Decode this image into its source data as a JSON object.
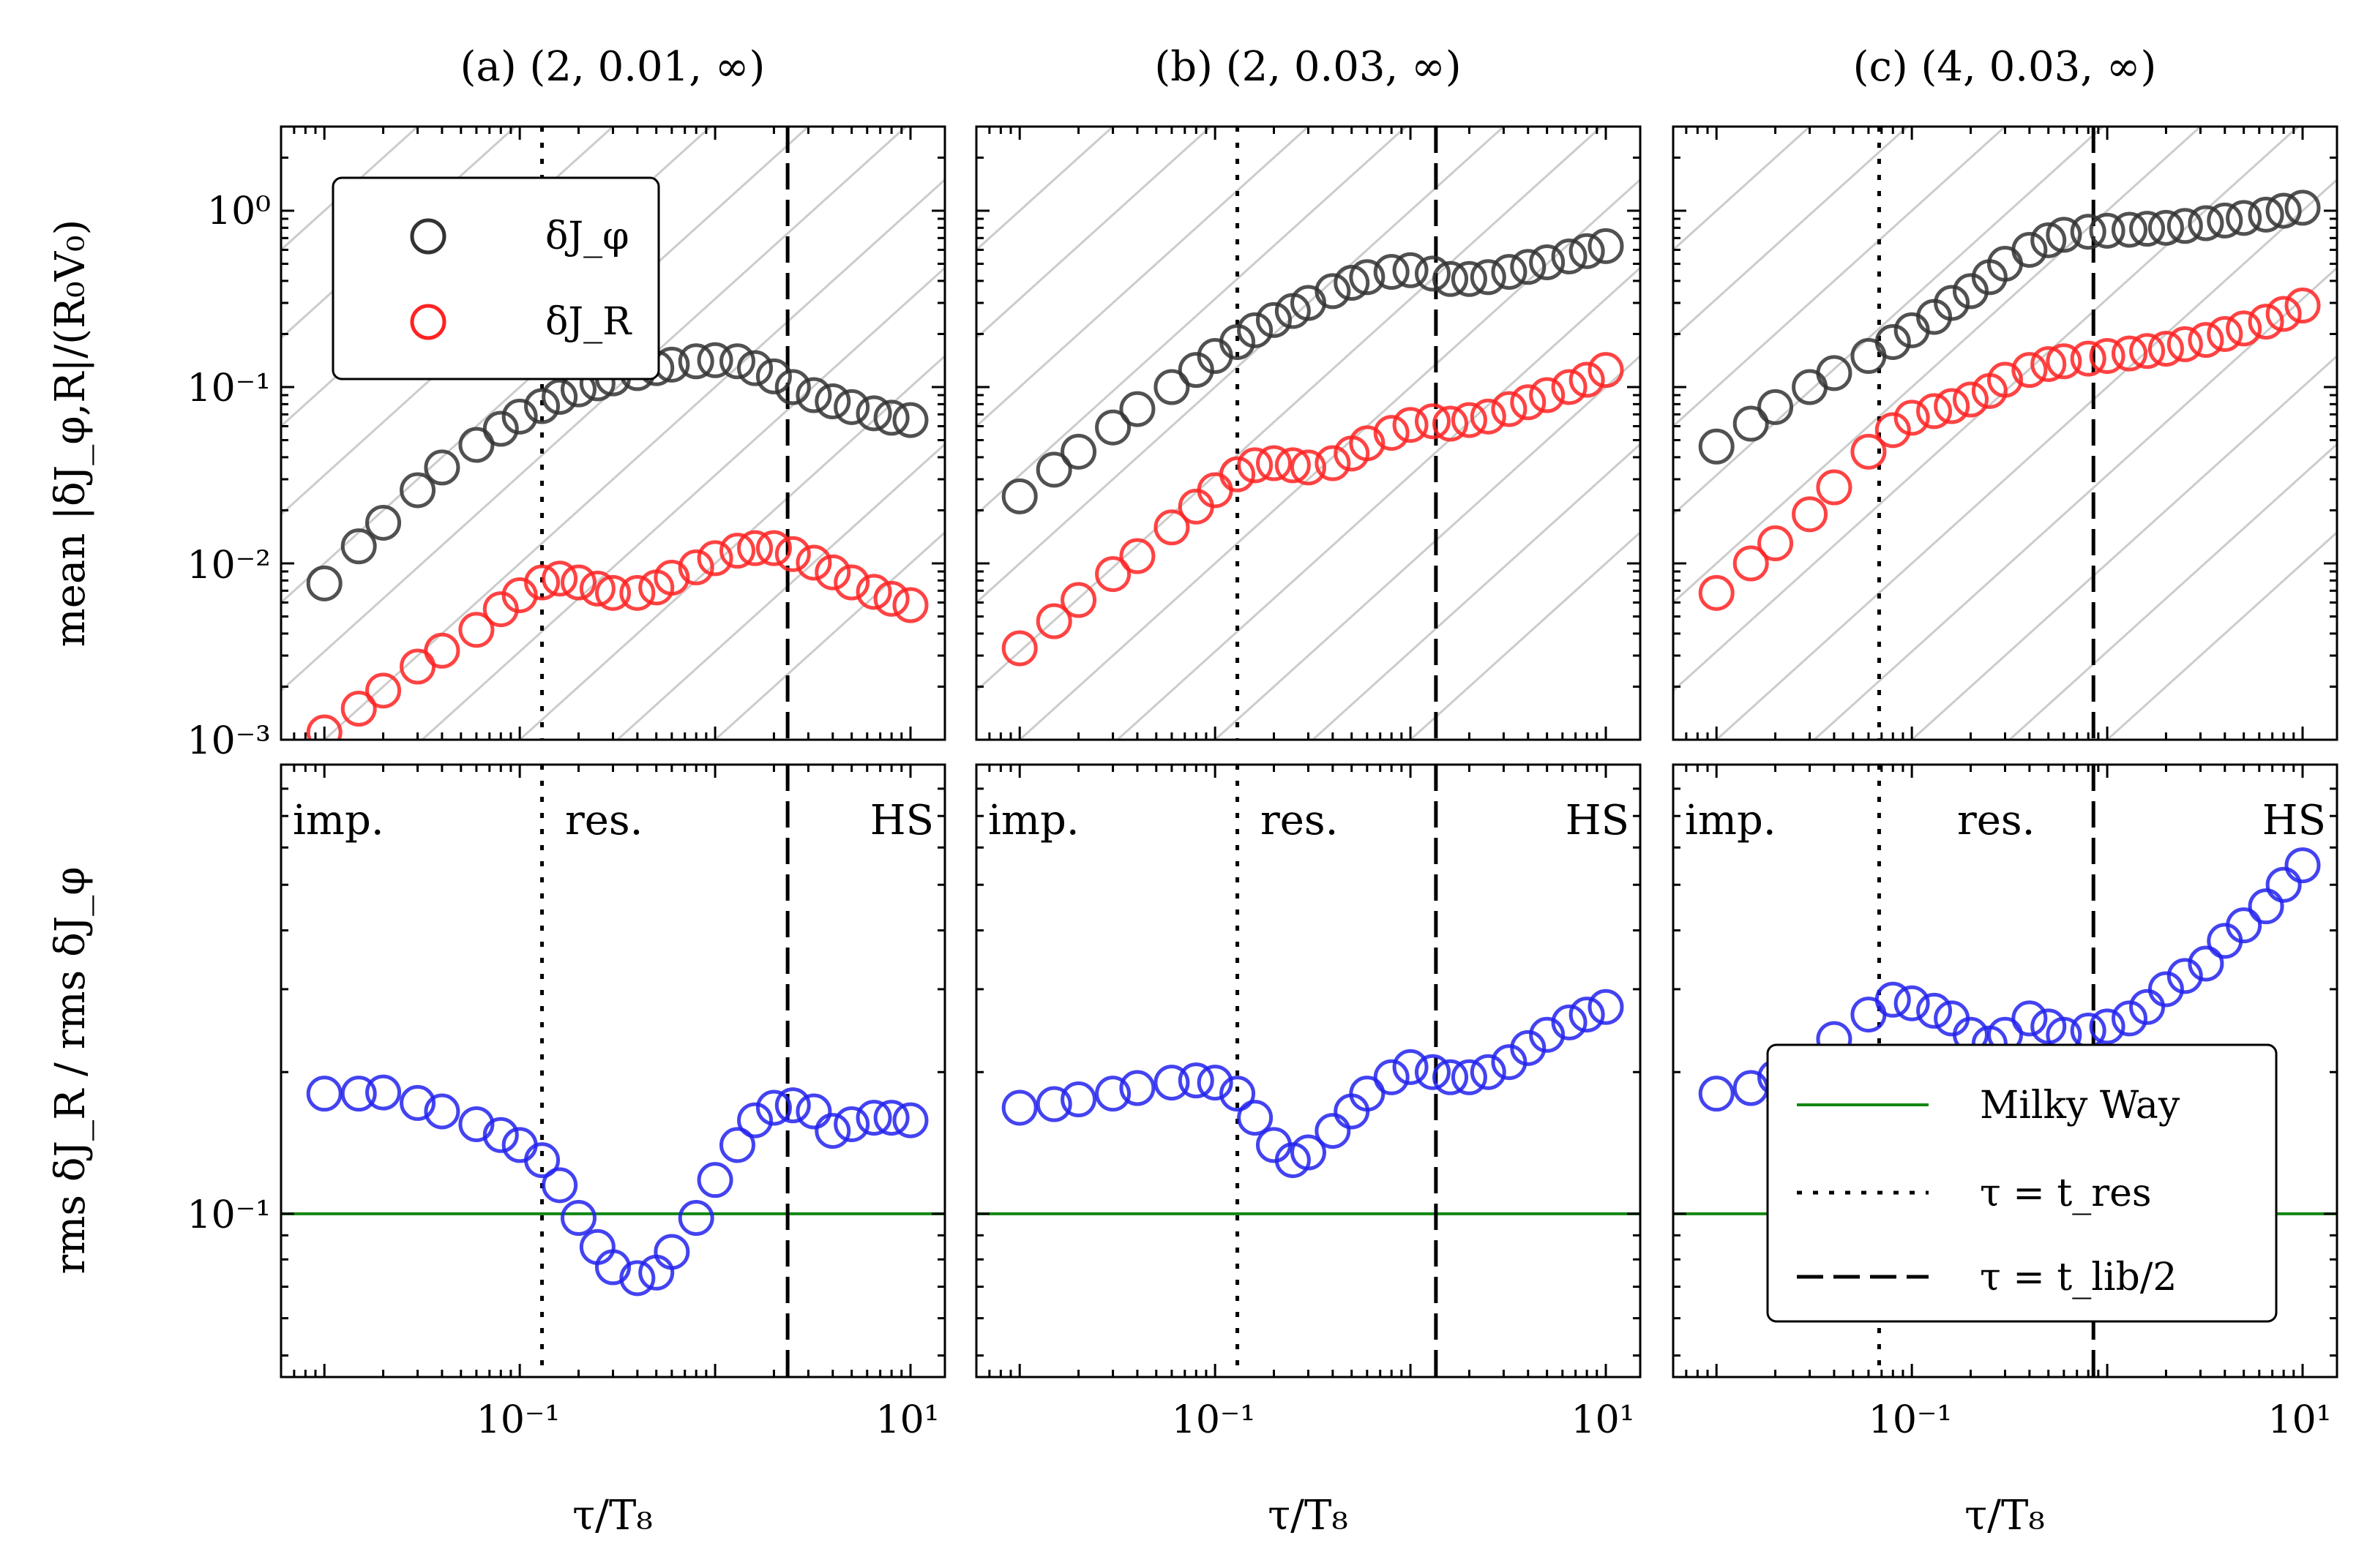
{
  "chart_data": {
    "type": "scatter",
    "x_axis": {
      "label": "τ/T₈",
      "scale": "log",
      "xlim": [
        0.006,
        15
      ],
      "tick_labels": [
        "10⁻¹",
        "10¹"
      ],
      "tick_values": [
        0.1,
        10
      ]
    },
    "top_y_axis": {
      "label": "mean |δJ_φ,R|/(R₀V₀)",
      "scale": "log",
      "ylim": [
        0.001,
        3
      ],
      "tick_labels": [
        "10⁰",
        "10⁻¹",
        "10⁻²",
        "10⁻³"
      ],
      "tick_values": [
        1,
        0.1,
        0.01,
        0.001
      ]
    },
    "bottom_y_axis": {
      "label": "rms δJ_R / rms δJ_φ",
      "scale": "log",
      "ylim": [
        0.045,
        0.9
      ],
      "tick_labels": [
        "10⁻¹"
      ],
      "tick_values": [
        0.1
      ]
    },
    "regime_labels": [
      "imp.",
      "res.",
      "HS"
    ],
    "milky_way_ratio": 0.1,
    "legend_top": [
      "δJ_φ",
      "δJ_R"
    ],
    "legend_bottom": [
      "Milky Way",
      "τ = t_res",
      "τ = t_lib/2"
    ],
    "colors": {
      "phi": "#333333",
      "R": "#ff2222",
      "ratio": "#2222ee",
      "mw": "#118811",
      "guide": "#cccccc"
    },
    "panels": [
      {
        "title": "(a) (2, 0.01, ∞)",
        "t_res": 0.13,
        "t_lib_half": 2.35,
        "dJphi": [
          [
            0.01,
            0.0077
          ],
          [
            0.015,
            0.0125
          ],
          [
            0.02,
            0.017
          ],
          [
            0.03,
            0.026
          ],
          [
            0.04,
            0.035
          ],
          [
            0.06,
            0.047
          ],
          [
            0.08,
            0.058
          ],
          [
            0.1,
            0.068
          ],
          [
            0.13,
            0.078
          ],
          [
            0.16,
            0.088
          ],
          [
            0.2,
            0.097
          ],
          [
            0.25,
            0.105
          ],
          [
            0.3,
            0.112
          ],
          [
            0.4,
            0.12
          ],
          [
            0.5,
            0.128
          ],
          [
            0.6,
            0.134
          ],
          [
            0.8,
            0.14
          ],
          [
            1.0,
            0.142
          ],
          [
            1.3,
            0.14
          ],
          [
            1.6,
            0.128
          ],
          [
            2.0,
            0.115
          ],
          [
            2.5,
            0.1
          ],
          [
            3.2,
            0.09
          ],
          [
            4.0,
            0.083
          ],
          [
            5.0,
            0.077
          ],
          [
            6.5,
            0.071
          ],
          [
            8.0,
            0.067
          ],
          [
            10.0,
            0.065
          ]
        ],
        "dJR": [
          [
            0.01,
            0.0011
          ],
          [
            0.015,
            0.0015
          ],
          [
            0.02,
            0.0019
          ],
          [
            0.03,
            0.0026
          ],
          [
            0.04,
            0.0032
          ],
          [
            0.06,
            0.0042
          ],
          [
            0.08,
            0.0055
          ],
          [
            0.1,
            0.0066
          ],
          [
            0.13,
            0.0078
          ],
          [
            0.16,
            0.0082
          ],
          [
            0.2,
            0.0078
          ],
          [
            0.25,
            0.0072
          ],
          [
            0.3,
            0.0068
          ],
          [
            0.4,
            0.0068
          ],
          [
            0.5,
            0.0073
          ],
          [
            0.6,
            0.0083
          ],
          [
            0.8,
            0.0095
          ],
          [
            1.0,
            0.0107
          ],
          [
            1.3,
            0.0118
          ],
          [
            1.6,
            0.0122
          ],
          [
            2.0,
            0.0122
          ],
          [
            2.5,
            0.0113
          ],
          [
            3.2,
            0.0101
          ],
          [
            4.0,
            0.0089
          ],
          [
            5.0,
            0.0078
          ],
          [
            6.5,
            0.0069
          ],
          [
            8.0,
            0.0063
          ],
          [
            10.0,
            0.0058
          ]
        ],
        "ratio": [
          [
            0.01,
            0.18
          ],
          [
            0.015,
            0.18
          ],
          [
            0.02,
            0.181
          ],
          [
            0.03,
            0.172
          ],
          [
            0.04,
            0.165
          ],
          [
            0.06,
            0.155
          ],
          [
            0.08,
            0.147
          ],
          [
            0.1,
            0.14
          ],
          [
            0.13,
            0.13
          ],
          [
            0.16,
            0.115
          ],
          [
            0.2,
            0.098
          ],
          [
            0.25,
            0.085
          ],
          [
            0.3,
            0.077
          ],
          [
            0.4,
            0.073
          ],
          [
            0.5,
            0.075
          ],
          [
            0.6,
            0.083
          ],
          [
            0.8,
            0.098
          ],
          [
            1.0,
            0.118
          ],
          [
            1.3,
            0.14
          ],
          [
            1.6,
            0.158
          ],
          [
            2.0,
            0.168
          ],
          [
            2.5,
            0.17
          ],
          [
            3.2,
            0.165
          ],
          [
            4.0,
            0.15
          ],
          [
            5.0,
            0.155
          ],
          [
            6.5,
            0.16
          ],
          [
            8.0,
            0.16
          ],
          [
            10.0,
            0.158
          ]
        ]
      },
      {
        "title": "(b) (2, 0.03, ∞)",
        "t_res": 0.13,
        "t_lib_half": 1.35,
        "dJphi": [
          [
            0.01,
            0.024
          ],
          [
            0.015,
            0.034
          ],
          [
            0.02,
            0.043
          ],
          [
            0.03,
            0.059
          ],
          [
            0.04,
            0.075
          ],
          [
            0.06,
            0.1
          ],
          [
            0.08,
            0.125
          ],
          [
            0.1,
            0.15
          ],
          [
            0.13,
            0.18
          ],
          [
            0.16,
            0.21
          ],
          [
            0.2,
            0.24
          ],
          [
            0.25,
            0.27
          ],
          [
            0.3,
            0.3
          ],
          [
            0.4,
            0.35
          ],
          [
            0.5,
            0.39
          ],
          [
            0.6,
            0.42
          ],
          [
            0.8,
            0.45
          ],
          [
            1.0,
            0.46
          ],
          [
            1.3,
            0.44
          ],
          [
            1.6,
            0.41
          ],
          [
            2.0,
            0.41
          ],
          [
            2.5,
            0.42
          ],
          [
            3.2,
            0.45
          ],
          [
            4.0,
            0.48
          ],
          [
            5.0,
            0.51
          ],
          [
            6.5,
            0.55
          ],
          [
            8.0,
            0.59
          ],
          [
            10.0,
            0.63
          ]
        ],
        "dJR": [
          [
            0.01,
            0.0033
          ],
          [
            0.015,
            0.0047
          ],
          [
            0.02,
            0.0062
          ],
          [
            0.03,
            0.0087
          ],
          [
            0.04,
            0.011
          ],
          [
            0.06,
            0.016
          ],
          [
            0.08,
            0.021
          ],
          [
            0.1,
            0.026
          ],
          [
            0.13,
            0.032
          ],
          [
            0.16,
            0.036
          ],
          [
            0.2,
            0.037
          ],
          [
            0.25,
            0.036
          ],
          [
            0.3,
            0.035
          ],
          [
            0.4,
            0.037
          ],
          [
            0.5,
            0.042
          ],
          [
            0.6,
            0.048
          ],
          [
            0.8,
            0.055
          ],
          [
            1.0,
            0.061
          ],
          [
            1.3,
            0.064
          ],
          [
            1.6,
            0.062
          ],
          [
            2.0,
            0.065
          ],
          [
            2.5,
            0.068
          ],
          [
            3.2,
            0.075
          ],
          [
            4.0,
            0.082
          ],
          [
            5.0,
            0.09
          ],
          [
            6.5,
            0.1
          ],
          [
            8.0,
            0.11
          ],
          [
            10.0,
            0.125
          ]
        ],
        "ratio": [
          [
            0.01,
            0.168
          ],
          [
            0.015,
            0.171
          ],
          [
            0.02,
            0.175
          ],
          [
            0.03,
            0.18
          ],
          [
            0.04,
            0.185
          ],
          [
            0.06,
            0.19
          ],
          [
            0.08,
            0.192
          ],
          [
            0.1,
            0.19
          ],
          [
            0.13,
            0.18
          ],
          [
            0.16,
            0.16
          ],
          [
            0.2,
            0.14
          ],
          [
            0.25,
            0.13
          ],
          [
            0.3,
            0.135
          ],
          [
            0.4,
            0.15
          ],
          [
            0.5,
            0.165
          ],
          [
            0.6,
            0.18
          ],
          [
            0.8,
            0.195
          ],
          [
            1.0,
            0.205
          ],
          [
            1.3,
            0.2
          ],
          [
            1.6,
            0.195
          ],
          [
            2.0,
            0.195
          ],
          [
            2.5,
            0.2
          ],
          [
            3.2,
            0.21
          ],
          [
            4.0,
            0.225
          ],
          [
            5.0,
            0.24
          ],
          [
            6.5,
            0.255
          ],
          [
            8.0,
            0.265
          ],
          [
            10.0,
            0.275
          ]
        ]
      },
      {
        "title": "(c) (4, 0.03, ∞)",
        "t_res": 0.068,
        "t_lib_half": 0.85,
        "dJphi": [
          [
            0.01,
            0.046
          ],
          [
            0.015,
            0.062
          ],
          [
            0.02,
            0.077
          ],
          [
            0.03,
            0.1
          ],
          [
            0.04,
            0.12
          ],
          [
            0.06,
            0.15
          ],
          [
            0.08,
            0.18
          ],
          [
            0.1,
            0.21
          ],
          [
            0.13,
            0.25
          ],
          [
            0.16,
            0.3
          ],
          [
            0.2,
            0.35
          ],
          [
            0.25,
            0.42
          ],
          [
            0.3,
            0.5
          ],
          [
            0.4,
            0.6
          ],
          [
            0.5,
            0.68
          ],
          [
            0.6,
            0.73
          ],
          [
            0.8,
            0.76
          ],
          [
            1.0,
            0.77
          ],
          [
            1.3,
            0.78
          ],
          [
            1.6,
            0.79
          ],
          [
            2.0,
            0.8
          ],
          [
            2.5,
            0.82
          ],
          [
            3.2,
            0.85
          ],
          [
            4.0,
            0.88
          ],
          [
            5.0,
            0.91
          ],
          [
            6.5,
            0.95
          ],
          [
            8.0,
            1.0
          ],
          [
            10.0,
            1.04
          ]
        ],
        "dJR": [
          [
            0.01,
            0.0068
          ],
          [
            0.015,
            0.01
          ],
          [
            0.02,
            0.013
          ],
          [
            0.03,
            0.019
          ],
          [
            0.04,
            0.027
          ],
          [
            0.06,
            0.043
          ],
          [
            0.08,
            0.057
          ],
          [
            0.1,
            0.067
          ],
          [
            0.13,
            0.073
          ],
          [
            0.16,
            0.078
          ],
          [
            0.2,
            0.085
          ],
          [
            0.25,
            0.095
          ],
          [
            0.3,
            0.11
          ],
          [
            0.4,
            0.125
          ],
          [
            0.5,
            0.135
          ],
          [
            0.6,
            0.14
          ],
          [
            0.8,
            0.145
          ],
          [
            1.0,
            0.15
          ],
          [
            1.3,
            0.155
          ],
          [
            1.6,
            0.16
          ],
          [
            2.0,
            0.165
          ],
          [
            2.5,
            0.175
          ],
          [
            3.2,
            0.185
          ],
          [
            4.0,
            0.2
          ],
          [
            5.0,
            0.215
          ],
          [
            6.5,
            0.235
          ],
          [
            8.0,
            0.26
          ],
          [
            10.0,
            0.29
          ]
        ],
        "ratio": [
          [
            0.01,
            0.18
          ],
          [
            0.015,
            0.185
          ],
          [
            0.02,
            0.195
          ],
          [
            0.03,
            0.21
          ],
          [
            0.04,
            0.235
          ],
          [
            0.06,
            0.265
          ],
          [
            0.08,
            0.285
          ],
          [
            0.1,
            0.28
          ],
          [
            0.13,
            0.27
          ],
          [
            0.16,
            0.26
          ],
          [
            0.2,
            0.24
          ],
          [
            0.25,
            0.23
          ],
          [
            0.3,
            0.24
          ],
          [
            0.4,
            0.26
          ],
          [
            0.5,
            0.25
          ],
          [
            0.6,
            0.24
          ],
          [
            0.8,
            0.245
          ],
          [
            1.0,
            0.25
          ],
          [
            1.3,
            0.26
          ],
          [
            1.6,
            0.275
          ],
          [
            2.0,
            0.3
          ],
          [
            2.5,
            0.32
          ],
          [
            3.2,
            0.34
          ],
          [
            4.0,
            0.38
          ],
          [
            5.0,
            0.41
          ],
          [
            6.5,
            0.45
          ],
          [
            8.0,
            0.5
          ],
          [
            10.0,
            0.55
          ]
        ]
      }
    ]
  }
}
